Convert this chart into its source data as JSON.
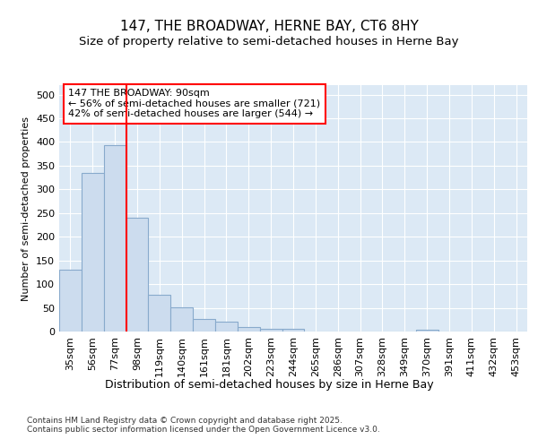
{
  "title1": "147, THE BROADWAY, HERNE BAY, CT6 8HY",
  "title2": "Size of property relative to semi-detached houses in Herne Bay",
  "xlabel": "Distribution of semi-detached houses by size in Herne Bay",
  "ylabel": "Number of semi-detached properties",
  "footnote": "Contains HM Land Registry data © Crown copyright and database right 2025.\nContains public sector information licensed under the Open Government Licence v3.0.",
  "bin_labels": [
    "35sqm",
    "56sqm",
    "77sqm",
    "98sqm",
    "119sqm",
    "140sqm",
    "161sqm",
    "181sqm",
    "202sqm",
    "223sqm",
    "244sqm",
    "265sqm",
    "286sqm",
    "307sqm",
    "328sqm",
    "349sqm",
    "370sqm",
    "391sqm",
    "411sqm",
    "432sqm",
    "453sqm"
  ],
  "bar_values": [
    130,
    335,
    393,
    240,
    78,
    51,
    27,
    20,
    10,
    5,
    5,
    0,
    0,
    0,
    0,
    0,
    3,
    0,
    0,
    0,
    0
  ],
  "bar_color": "#ccdcee",
  "bar_edge_color": "#88aacc",
  "vline_x": 2.5,
  "vline_color": "red",
  "annotation_title": "147 THE BROADWAY: 90sqm",
  "annotation_line1": "← 56% of semi-detached houses are smaller (721)",
  "annotation_line2": "42% of semi-detached houses are larger (544) →",
  "annotation_box_color": "white",
  "annotation_box_edge": "red",
  "ylim": [
    0,
    520
  ],
  "yticks": [
    0,
    50,
    100,
    150,
    200,
    250,
    300,
    350,
    400,
    450,
    500
  ],
  "bg_color": "#ffffff",
  "plot_bg_color": "#dce9f5",
  "title1_fontsize": 11,
  "title2_fontsize": 9.5,
  "xlabel_fontsize": 9,
  "ylabel_fontsize": 8,
  "annotation_fontsize": 8,
  "footnote_fontsize": 6.5,
  "tick_fontsize": 8
}
